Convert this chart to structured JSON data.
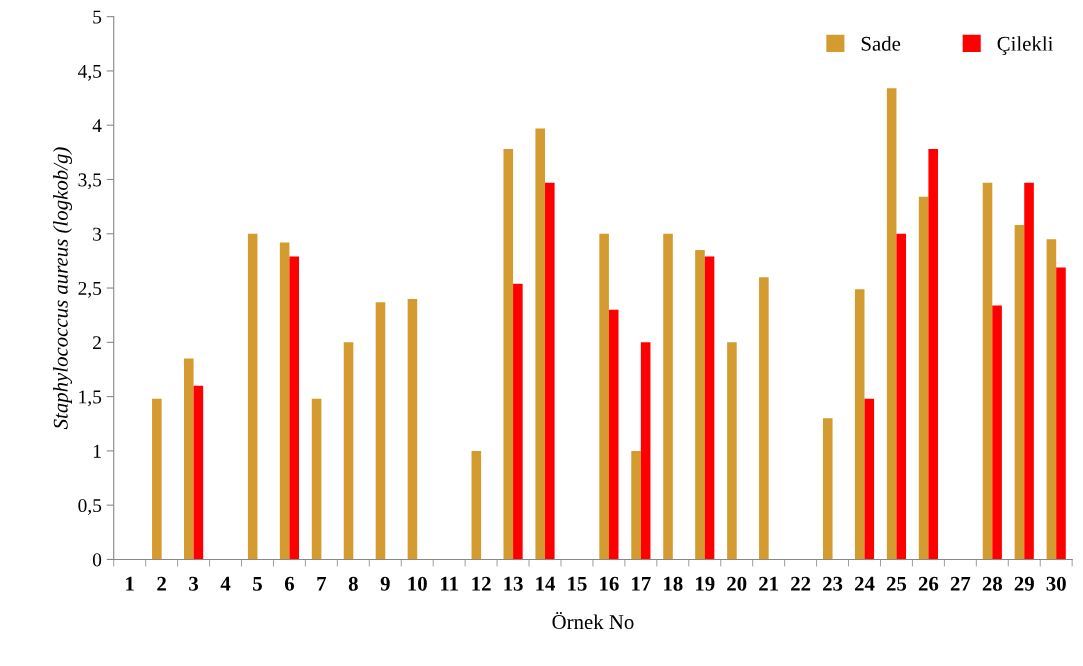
{
  "chart_data": {
    "type": "bar",
    "xlabel": "Örnek No",
    "ylabel": "Staphylococcus aureus (logkob/g)",
    "categories": [
      "1",
      "2",
      "3",
      "4",
      "5",
      "6",
      "7",
      "8",
      "9",
      "10",
      "11",
      "12",
      "13",
      "14",
      "15",
      "16",
      "17",
      "18",
      "19",
      "20",
      "21",
      "22",
      "23",
      "24",
      "25",
      "26",
      "27",
      "28",
      "29",
      "30"
    ],
    "series": [
      {
        "name": "Sade",
        "color": "#d39b30",
        "values": [
          null,
          1.48,
          1.85,
          null,
          3.0,
          2.92,
          1.48,
          2.0,
          2.37,
          2.4,
          null,
          1.0,
          3.78,
          3.97,
          null,
          3.0,
          1.0,
          3.0,
          2.85,
          2.0,
          2.6,
          null,
          1.3,
          2.49,
          4.34,
          3.34,
          null,
          3.47,
          3.08,
          2.95
        ]
      },
      {
        "name": "Çilekli",
        "color": "#ff0000",
        "values": [
          null,
          null,
          1.6,
          null,
          null,
          2.79,
          null,
          null,
          null,
          null,
          null,
          null,
          2.54,
          3.47,
          null,
          2.3,
          2.0,
          null,
          2.79,
          null,
          null,
          null,
          null,
          1.48,
          3.0,
          3.78,
          null,
          2.34,
          3.47,
          2.69
        ]
      }
    ],
    "ylim": [
      0,
      5
    ],
    "yticks": [
      0,
      {
        "value": 0.5,
        "label": "0,5"
      },
      1,
      {
        "value": 1.5,
        "label": "1,5"
      },
      2,
      {
        "value": 2.5,
        "label": "2,5"
      },
      3,
      {
        "value": 3.5,
        "label": "3,5"
      },
      4,
      {
        "value": 4.5,
        "label": "4,5"
      },
      5
    ],
    "grid": false,
    "legend": "top right"
  }
}
